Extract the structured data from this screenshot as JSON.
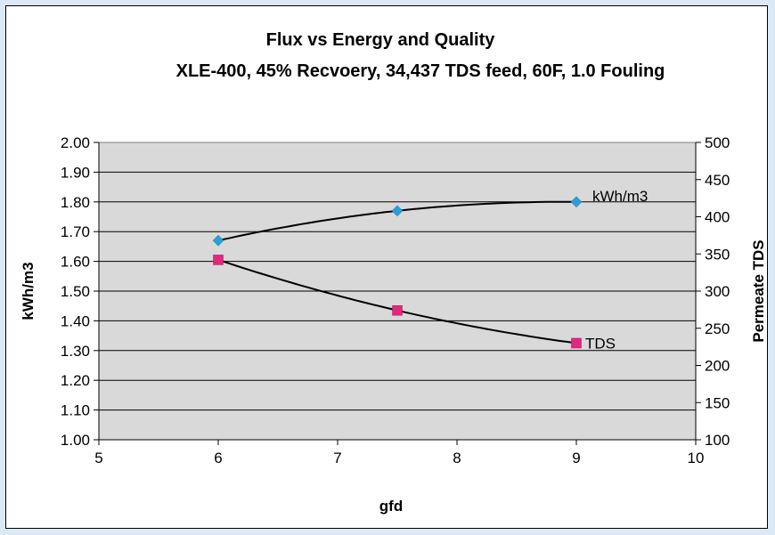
{
  "chart_data": {
    "type": "line",
    "title": "Flux vs Energy and Quality",
    "subtitle": "XLE-400, 45% Recvoery, 34,437 TDS feed, 60F, 1.0 Fouling",
    "xlabel": "gfd",
    "ylabel": "kWh/m3",
    "y2label": "Permeate TDS",
    "xlim": [
      5,
      10
    ],
    "ylim": [
      1.0,
      2.0
    ],
    "y2lim": [
      100,
      500
    ],
    "x_ticks": [
      "5",
      "6",
      "7",
      "8",
      "9",
      "10"
    ],
    "y_ticks": [
      "1.00",
      "1.10",
      "1.20",
      "1.30",
      "1.40",
      "1.50",
      "1.60",
      "1.70",
      "1.80",
      "1.90",
      "2.00"
    ],
    "y2_ticks": [
      "100",
      "150",
      "200",
      "250",
      "300",
      "350",
      "400",
      "450",
      "500"
    ],
    "grid": true,
    "legend": "none",
    "plot_background": "#d9d9d9",
    "series": [
      {
        "name": "kWh/m3",
        "axis": "left",
        "marker": "diamond",
        "color": "#2a9fd6",
        "x": [
          6,
          7.5,
          9
        ],
        "values": [
          1.67,
          1.77,
          1.8
        ]
      },
      {
        "name": "TDS",
        "axis": "right",
        "marker": "square",
        "color": "#e0297e",
        "x": [
          6,
          7.5,
          9
        ],
        "values": [
          342,
          274,
          230
        ]
      }
    ]
  }
}
